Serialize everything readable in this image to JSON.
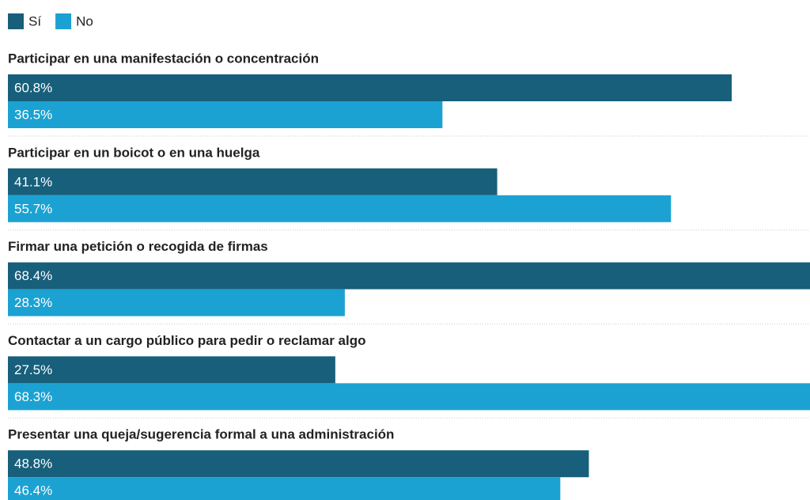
{
  "chart_data": {
    "type": "bar",
    "orientation": "horizontal",
    "categories": [
      "Participar en una manifestación o concentración",
      "Participar en un boicot o en una huelga",
      "Firmar una petición o recogida de firmas",
      "Contactar a un cargo público para pedir o reclamar algo",
      "Presentar una queja/sugerencia formal a una administración"
    ],
    "series": [
      {
        "name": "Sí",
        "color": "#175f7b",
        "values": [
          60.8,
          41.1,
          68.4,
          27.5,
          48.8
        ],
        "value_labels": [
          "60.8%",
          "41.1%",
          "68.4%",
          "27.5%",
          "48.8%"
        ]
      },
      {
        "name": "No",
        "color": "#1ba2d2",
        "values": [
          36.5,
          55.7,
          28.3,
          68.3,
          46.4
        ],
        "value_labels": [
          "36.5%",
          "55.7%",
          "28.3%",
          "68.3%",
          "46.4%"
        ]
      }
    ],
    "legend": "top-left"
  }
}
